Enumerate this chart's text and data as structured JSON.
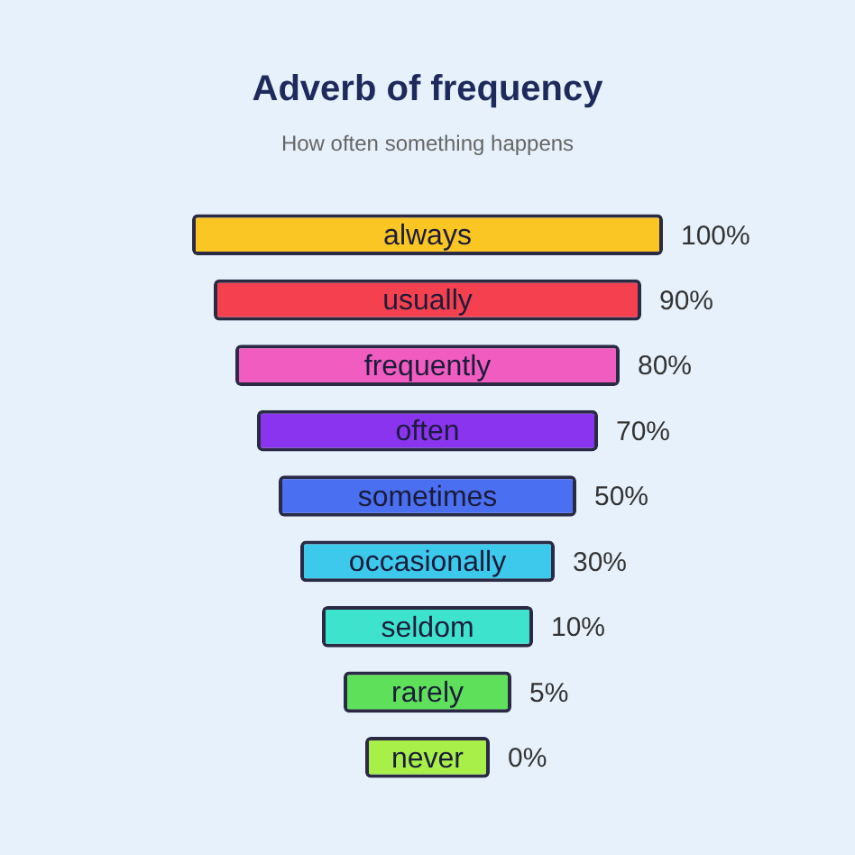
{
  "chart_data": {
    "type": "other",
    "title": "Adverb of frequency",
    "subtitle": "How often something happens",
    "categories": [
      "always",
      "usually",
      "frequently",
      "often",
      "sometimes",
      "occasionally",
      "seldom",
      "rarely",
      "never"
    ],
    "values": [
      100,
      90,
      80,
      70,
      50,
      30,
      10,
      5,
      0
    ],
    "value_labels": [
      "100%",
      "90%",
      "80%",
      "70%",
      "50%",
      "30%",
      "10%",
      "5%",
      "0%"
    ],
    "colors": [
      "#f9c623",
      "#f5414f",
      "#f15cc0",
      "#8a34f0",
      "#4a6ff0",
      "#3dc9ec",
      "#3de3cc",
      "#5ee05a",
      "#a8ef4a"
    ]
  }
}
